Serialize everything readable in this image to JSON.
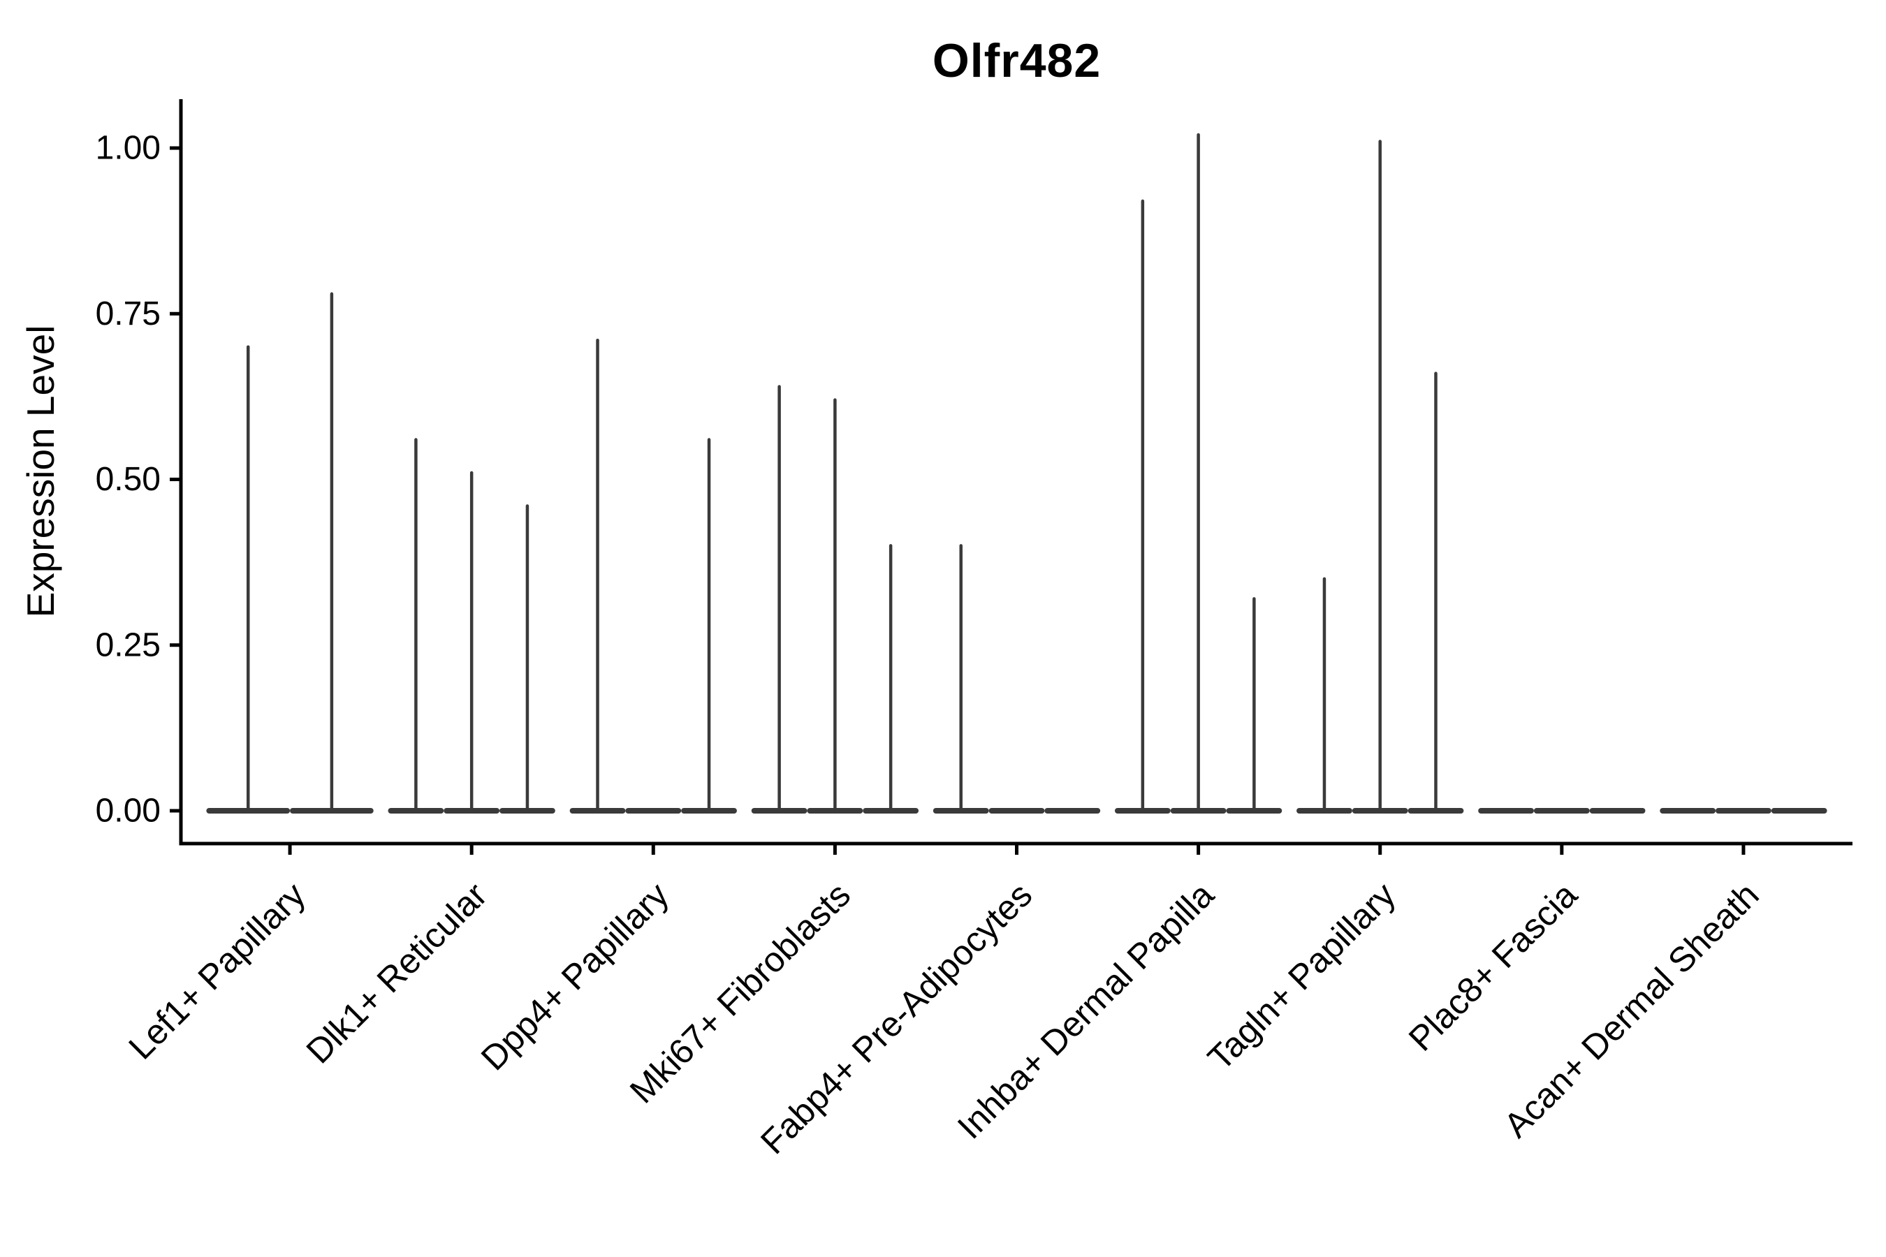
{
  "chart_data": {
    "type": "violin",
    "title": "Olfr482",
    "ylabel": "Expression Level",
    "xlabel": "",
    "ylim": [
      -0.05,
      1.07
    ],
    "grid": false,
    "legend": "none",
    "axis_color": "#000000",
    "violin_color": "#3a3a3a",
    "background": "#ffffff",
    "yticks": [
      {
        "value": 0.0,
        "label": "0.00"
      },
      {
        "value": 0.25,
        "label": "0.25"
      },
      {
        "value": 0.5,
        "label": "0.50"
      },
      {
        "value": 0.75,
        "label": "0.75"
      },
      {
        "value": 1.0,
        "label": "1.00"
      }
    ],
    "categories": [
      "Lef1+ Papillary",
      "Dlk1+ Reticular",
      "Dpp4+ Papillary",
      "Mki67+ Fibroblasts",
      "Fabp4+ Pre-Adipocytes",
      "Inhba+ Dermal Papilla",
      "Tagln+ Papillary",
      "Plac8+ Fascia",
      "Acan+ Dermal Sheath"
    ],
    "groups": [
      {
        "label": "Lef1+ Papillary",
        "violin_maxima": [
          0.7,
          0.78
        ]
      },
      {
        "label": "Dlk1+ Reticular",
        "violin_maxima": [
          0.56,
          0.51,
          0.46
        ]
      },
      {
        "label": "Dpp4+ Papillary",
        "violin_maxima": [
          0.71,
          0.0,
          0.56
        ]
      },
      {
        "label": "Mki67+ Fibroblasts",
        "violin_maxima": [
          0.64,
          0.62,
          0.4
        ]
      },
      {
        "label": "Fabp4+ Pre-Adipocytes",
        "violin_maxima": [
          0.4,
          0.0,
          0.0
        ]
      },
      {
        "label": "Inhba+ Dermal Papilla",
        "violin_maxima": [
          0.92,
          1.02,
          0.32
        ]
      },
      {
        "label": "Tagln+ Papillary",
        "violin_maxima": [
          0.35,
          1.01,
          0.66
        ]
      },
      {
        "label": "Plac8+ Fascia",
        "violin_maxima": [
          0.0,
          0.0,
          0.0
        ]
      },
      {
        "label": "Acan+ Dermal Sheath",
        "violin_maxima": [
          0.0,
          0.0,
          0.0
        ]
      }
    ]
  }
}
